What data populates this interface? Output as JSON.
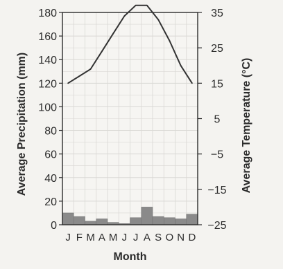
{
  "chart_data": {
    "type": "climate-graph",
    "xlabel": "Month",
    "categories": [
      "J",
      "F",
      "M",
      "A",
      "M",
      "J",
      "J",
      "A",
      "S",
      "O",
      "N",
      "D"
    ],
    "series": [
      {
        "type": "bar",
        "axis": "left",
        "ylabel": "Average Precipitation (mm)",
        "values": [
          10,
          7,
          3,
          5,
          2,
          1,
          6,
          15,
          7,
          6,
          5,
          9
        ],
        "color": "#8a8a8a"
      },
      {
        "type": "line",
        "axis": "right",
        "ylabel": "Average Temperature (°C)",
        "values": [
          15,
          17,
          19,
          24,
          29,
          34,
          37,
          37,
          33,
          27,
          20,
          15
        ],
        "color": "#333333"
      }
    ],
    "y_left": {
      "label": "Average Precipitation (mm)",
      "min": 0,
      "max": 180,
      "ticks": [
        0,
        20,
        40,
        60,
        80,
        100,
        120,
        140,
        160,
        180
      ]
    },
    "y_right": {
      "label": "Average Temperature (°C)",
      "min": -25,
      "max": 35,
      "ticks": [
        -25,
        -15,
        -5,
        5,
        15,
        25,
        35
      ]
    },
    "grid": true,
    "colors": {
      "background": "#f4f3f0",
      "plot": "#f6f5f2",
      "grid": "#d9d8d4",
      "axis": "#2b2b2b"
    }
  }
}
